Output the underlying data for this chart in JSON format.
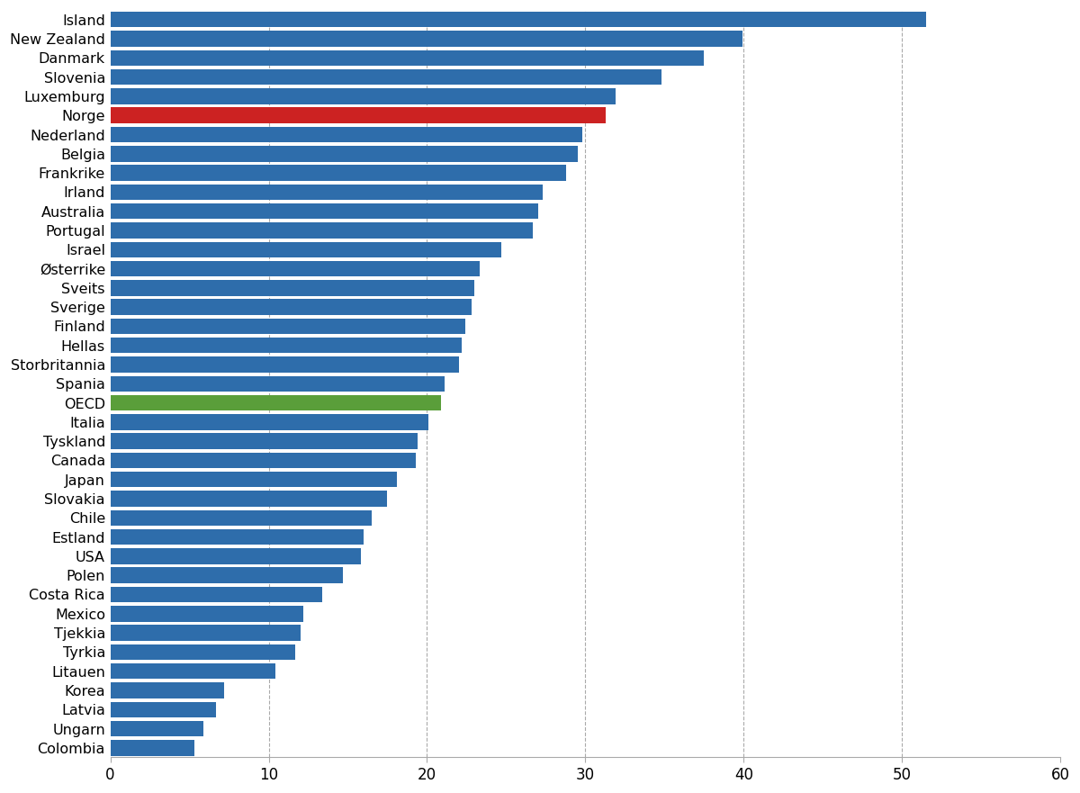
{
  "categories": [
    "Island",
    "New Zealand",
    "Danmark",
    "Slovenia",
    "Luxemburg",
    "Norge",
    "Nederland",
    "Belgia",
    "Frankrike",
    "Irland",
    "Australia",
    "Portugal",
    "Israel",
    "Østerrike",
    "Sveits",
    "Sverige",
    "Finland",
    "Hellas",
    "Storbritannia",
    "Spania",
    "OECD",
    "Italia",
    "Tyskland",
    "Canada",
    "Japan",
    "Slovakia",
    "Chile",
    "Estland",
    "USA",
    "Polen",
    "Costa Rica",
    "Mexico",
    "Tjekkia",
    "Tyrkia",
    "Litauen",
    "Korea",
    "Latvia",
    "Ungarn",
    "Colombia"
  ],
  "values": [
    51.5,
    39.9,
    37.5,
    34.8,
    31.9,
    31.3,
    29.8,
    29.5,
    28.8,
    27.3,
    27.0,
    26.7,
    24.7,
    23.3,
    23.0,
    22.8,
    22.4,
    22.2,
    22.0,
    21.1,
    20.9,
    20.1,
    19.4,
    19.3,
    18.1,
    17.5,
    16.5,
    16.0,
    15.8,
    14.7,
    13.4,
    12.2,
    12.0,
    11.7,
    10.4,
    7.2,
    6.7,
    5.9,
    5.3
  ],
  "colors": [
    "#2e6dab",
    "#2e6dab",
    "#2e6dab",
    "#2e6dab",
    "#2e6dab",
    "#cc2222",
    "#2e6dab",
    "#2e6dab",
    "#2e6dab",
    "#2e6dab",
    "#2e6dab",
    "#2e6dab",
    "#2e6dab",
    "#2e6dab",
    "#2e6dab",
    "#2e6dab",
    "#2e6dab",
    "#2e6dab",
    "#2e6dab",
    "#2e6dab",
    "#5a9e3a",
    "#2e6dab",
    "#2e6dab",
    "#2e6dab",
    "#2e6dab",
    "#2e6dab",
    "#2e6dab",
    "#2e6dab",
    "#2e6dab",
    "#2e6dab",
    "#2e6dab",
    "#2e6dab",
    "#2e6dab",
    "#2e6dab",
    "#2e6dab",
    "#2e6dab",
    "#2e6dab",
    "#2e6dab",
    "#2e6dab"
  ],
  "xlim": [
    0,
    60
  ],
  "xticks": [
    0,
    10,
    20,
    30,
    40,
    50,
    60
  ],
  "grid_lines": [
    10,
    20,
    30,
    40,
    50
  ],
  "background_color": "#ffffff",
  "bar_height": 0.82,
  "tick_fontsize": 12,
  "label_fontsize": 11.5
}
